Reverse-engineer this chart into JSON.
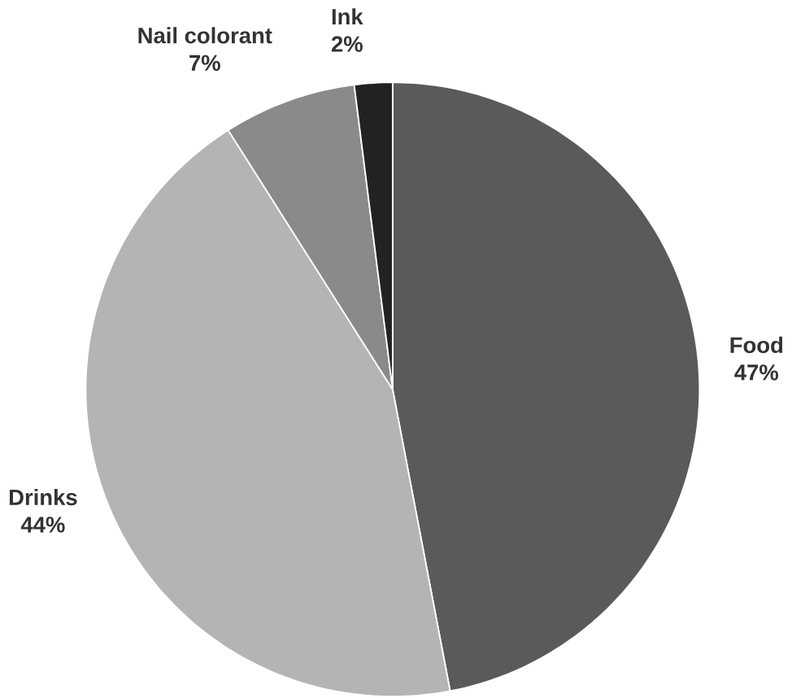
{
  "chart_data": {
    "type": "pie",
    "categories": [
      "Food",
      "Drinks",
      "Nail colorant",
      "Ink"
    ],
    "values": [
      47,
      44,
      7,
      2
    ],
    "value_labels": [
      "47%",
      "44%",
      "7%",
      "2%"
    ],
    "colors": [
      "#5a5a5a",
      "#b4b4b4",
      "#8a8a8a",
      "#222222"
    ]
  }
}
